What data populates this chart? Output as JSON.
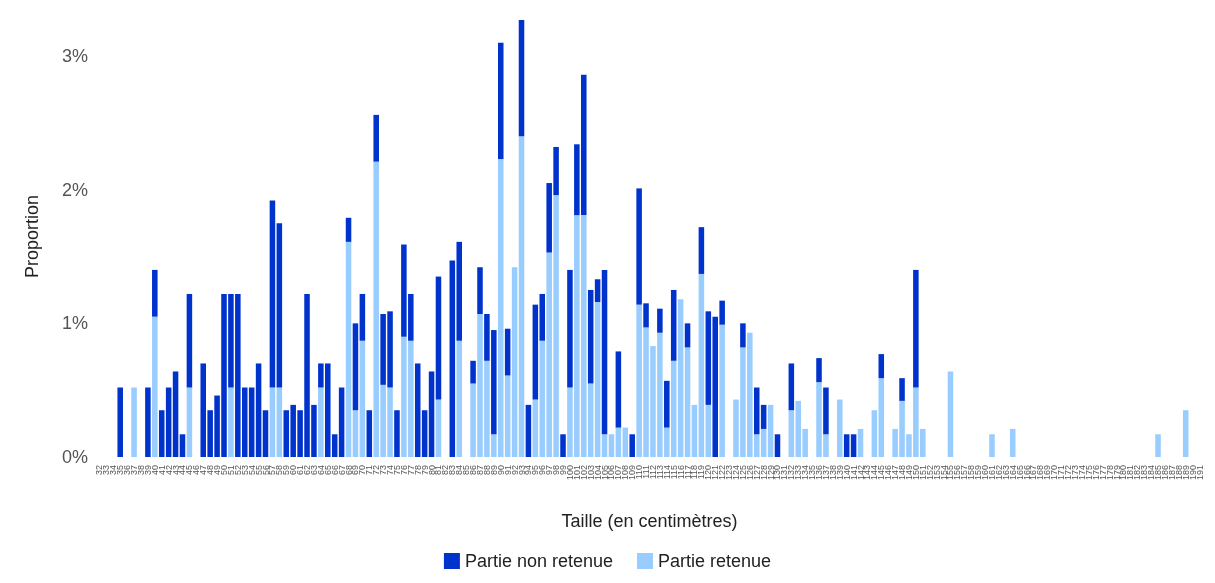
{
  "chart_data": {
    "type": "bar",
    "stacked": true,
    "xlabel": "Taille (en centimètres)",
    "ylabel": "Proportion",
    "categories": [
      "32",
      "33",
      "34",
      "35",
      "36",
      "37",
      "38",
      "39",
      "40",
      "41",
      "42",
      "43",
      "44",
      "45",
      "46",
      "47",
      "48",
      "49",
      "50",
      "51",
      "52",
      "53",
      "54",
      "55",
      "56",
      "57",
      "58",
      "59",
      "60",
      "61",
      "62",
      "63",
      "64",
      "65",
      "66",
      "67",
      "68",
      "69",
      "70",
      "71",
      "72",
      "73",
      "74",
      "75",
      "76",
      "77",
      "78",
      "79",
      "80",
      "81",
      "82",
      "83",
      "84",
      "85",
      "86",
      "87",
      "88",
      "89",
      "90",
      "91",
      "92",
      "93",
      "94",
      "95",
      "96",
      "97",
      "98",
      "99",
      "100",
      "101",
      "102",
      "103",
      "104",
      "105",
      "106",
      "107",
      "108",
      "109",
      "110",
      "111",
      "112",
      "113",
      "114",
      "115",
      "116",
      "117",
      "118",
      "119",
      "120",
      "121",
      "122",
      "123",
      "124",
      "125",
      "126",
      "127",
      "128",
      "129",
      "130",
      "131",
      "132",
      "133",
      "134",
      "135",
      "136",
      "137",
      "138",
      "139",
      "140",
      "141",
      "142",
      "143",
      "144",
      "145",
      "146",
      "147",
      "148",
      "149",
      "150",
      "151",
      "152",
      "153",
      "154",
      "155",
      "156",
      "157",
      "158",
      "159",
      "160",
      "161",
      "162",
      "163",
      "164",
      "165",
      "166",
      "167",
      "168",
      "169",
      "170",
      "171",
      "172",
      "173",
      "174",
      "175",
      "176",
      "177",
      "178",
      "179",
      "180",
      "181",
      "182",
      "183",
      "184",
      "185",
      "186",
      "187",
      "188",
      "189",
      "190",
      "191"
    ],
    "series": [
      {
        "name": "Partie retenue",
        "color": "#99ccff",
        "values": [
          null,
          null,
          null,
          null,
          null,
          0.52,
          null,
          null,
          1.05,
          null,
          null,
          null,
          null,
          0.52,
          null,
          null,
          null,
          null,
          null,
          0.52,
          null,
          null,
          null,
          null,
          null,
          0.52,
          0.52,
          null,
          null,
          null,
          null,
          null,
          0.52,
          null,
          null,
          null,
          1.61,
          0.35,
          0.87,
          null,
          2.21,
          0.54,
          0.52,
          null,
          0.9,
          0.87,
          null,
          null,
          null,
          0.43,
          null,
          null,
          0.87,
          null,
          0.55,
          1.07,
          0.72,
          0.17,
          2.23,
          0.61,
          1.42,
          2.4,
          null,
          0.43,
          0.87,
          1.53,
          1.96,
          null,
          0.52,
          1.81,
          1.81,
          0.55,
          1.16,
          0.17,
          0.17,
          0.22,
          0.22,
          null,
          1.14,
          0.97,
          0.83,
          0.93,
          0.22,
          0.72,
          1.18,
          0.82,
          0.39,
          1.37,
          0.39,
          null,
          0.99,
          null,
          0.43,
          0.82,
          0.93,
          0.17,
          0.21,
          0.39,
          null,
          null,
          0.35,
          0.42,
          0.21,
          null,
          0.56,
          0.17,
          null,
          0.43,
          null,
          null,
          0.21,
          null,
          0.35,
          0.59,
          null,
          0.21,
          0.42,
          0.17,
          0.52,
          0.21,
          null,
          null,
          null,
          0.64,
          null,
          null,
          null,
          null,
          null,
          0.17,
          null,
          null,
          0.21,
          null,
          null,
          null,
          null,
          null,
          null,
          null,
          null,
          null,
          null,
          null,
          null,
          null,
          null,
          null,
          null,
          null,
          null,
          null,
          null,
          0.17,
          null,
          null,
          null,
          0.35,
          null,
          null
        ]
      },
      {
        "name": "Partie non retenue",
        "color": "#0033cc",
        "values": [
          null,
          null,
          null,
          0.52,
          null,
          null,
          null,
          0.52,
          0.35,
          0.35,
          0.52,
          0.64,
          0.17,
          0.7,
          null,
          0.7,
          0.35,
          0.46,
          1.22,
          0.7,
          1.22,
          0.52,
          0.52,
          0.7,
          0.35,
          1.4,
          1.23,
          0.35,
          0.39,
          0.35,
          1.22,
          0.39,
          0.18,
          0.7,
          0.17,
          0.52,
          0.18,
          0.65,
          0.35,
          0.35,
          0.35,
          0.53,
          0.57,
          0.35,
          0.69,
          0.35,
          0.7,
          0.35,
          0.64,
          0.92,
          null,
          1.47,
          0.74,
          null,
          0.17,
          0.35,
          0.35,
          0.78,
          0.87,
          0.35,
          null,
          0.87,
          0.39,
          0.71,
          0.35,
          0.52,
          0.36,
          0.17,
          0.88,
          0.53,
          1.05,
          0.7,
          0.17,
          1.23,
          null,
          0.57,
          null,
          0.17,
          0.87,
          0.18,
          null,
          0.18,
          0.35,
          0.53,
          null,
          0.18,
          null,
          0.35,
          0.7,
          1.05,
          0.18,
          null,
          null,
          0.18,
          null,
          0.35,
          0.18,
          null,
          0.17,
          null,
          0.35,
          null,
          null,
          null,
          0.18,
          0.35,
          null,
          null,
          0.17,
          0.17,
          null,
          null,
          null,
          0.18,
          null,
          null,
          0.17,
          null,
          0.88,
          null,
          null,
          null,
          null,
          null,
          null,
          null,
          null,
          null,
          null,
          null,
          null,
          null,
          null,
          null,
          null,
          null,
          null,
          null,
          null,
          null,
          null,
          null,
          null,
          null,
          null,
          null,
          null,
          null,
          null,
          null,
          null,
          null,
          null,
          null,
          null,
          null,
          null,
          null,
          null,
          null
        ]
      }
    ],
    "ylim": [
      0,
      3.3
    ],
    "yticks": [
      {
        "value": 0,
        "label": "0%"
      },
      {
        "value": 1,
        "label": "1%"
      },
      {
        "value": 2,
        "label": "2%"
      },
      {
        "value": 3,
        "label": "3%"
      }
    ],
    "legend": "bottom"
  }
}
